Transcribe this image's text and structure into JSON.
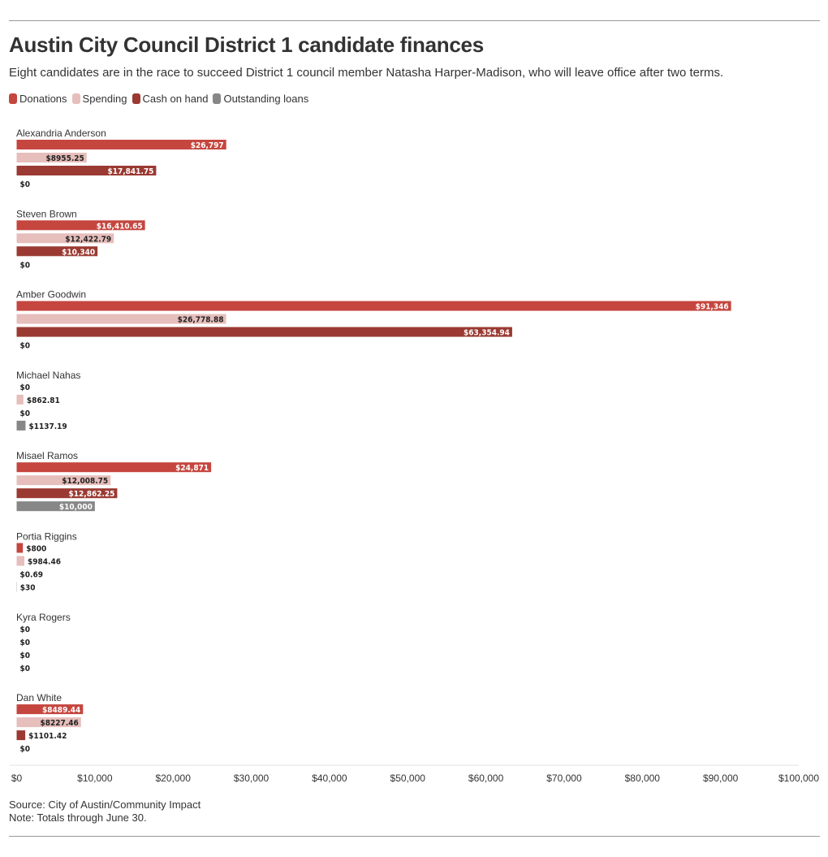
{
  "title": "Austin City Council District 1 candidate finances",
  "subtitle": "Eight candidates are in the race to succeed District 1 council member Natasha Harper-Madison, who will leave office after two terms.",
  "source": "Source: City of Austin/Community Impact",
  "note": "Note: Totals through June 30.",
  "colors": {
    "donations": "#c5463f",
    "spending": "#e6bebb",
    "cash_on_hand": "#9a3a32",
    "outstanding_loans": "#878787"
  },
  "chart_data": {
    "type": "bar",
    "orientation": "horizontal",
    "legend_position": "top-left",
    "grid": false,
    "xlim": [
      0,
      100000
    ],
    "x_ticks": [
      "$0",
      "$10,000",
      "$20,000",
      "$30,000",
      "$40,000",
      "$50,000",
      "$60,000",
      "$70,000",
      "$80,000",
      "$90,000",
      "$100,000"
    ],
    "series": [
      {
        "name": "Donations",
        "color_key": "donations"
      },
      {
        "name": "Spending",
        "color_key": "spending"
      },
      {
        "name": "Cash on hand",
        "color_key": "cash_on_hand"
      },
      {
        "name": "Outstanding loans",
        "color_key": "outstanding_loans"
      }
    ],
    "candidates": [
      {
        "name": "Alexandria Anderson",
        "values": [
          26797,
          8955.25,
          17841.75,
          0
        ],
        "labels": [
          "$26,797",
          "$8955.25",
          "$17,841.75",
          "$0"
        ]
      },
      {
        "name": "Steven Brown",
        "values": [
          16410.65,
          12422.79,
          10340,
          0
        ],
        "labels": [
          "$16,410.65",
          "$12,422.79",
          "$10,340",
          "$0"
        ]
      },
      {
        "name": "Amber Goodwin",
        "values": [
          91346,
          26778.88,
          63354.94,
          0
        ],
        "labels": [
          "$91,346",
          "$26,778.88",
          "$63,354.94",
          "$0"
        ]
      },
      {
        "name": "Michael Nahas",
        "values": [
          0,
          862.81,
          0,
          1137.19
        ],
        "labels": [
          "$0",
          "$862.81",
          "$0",
          "$1137.19"
        ]
      },
      {
        "name": "Misael Ramos",
        "values": [
          24871,
          12008.75,
          12862.25,
          10000
        ],
        "labels": [
          "$24,871",
          "$12,008.75",
          "$12,862.25",
          "$10,000"
        ]
      },
      {
        "name": "Portia Riggins",
        "values": [
          800,
          984.46,
          0.69,
          30
        ],
        "labels": [
          "$800",
          "$984.46",
          "$0.69",
          "$30"
        ]
      },
      {
        "name": "Kyra Rogers",
        "values": [
          0,
          0,
          0,
          0
        ],
        "labels": [
          "$0",
          "$0",
          "$0",
          "$0"
        ]
      },
      {
        "name": "Dan White",
        "values": [
          8489.44,
          8227.46,
          1101.42,
          0
        ],
        "labels": [
          "$8489.44",
          "$8227.46",
          "$1101.42",
          "$0"
        ]
      }
    ]
  }
}
